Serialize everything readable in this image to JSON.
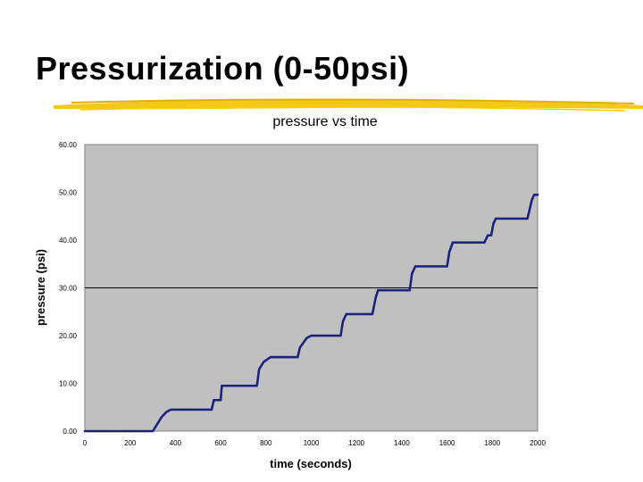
{
  "slide": {
    "title": "Pressurization (0-50psi)"
  },
  "colors": {
    "plot_background": "#c0c0c0",
    "series": "#1a237e",
    "underline": "#f2c200"
  },
  "chart_data": {
    "type": "scatter",
    "title": "pressure vs time",
    "xlabel": "time (seconds)",
    "ylabel": "pressure (psi)",
    "xlim": [
      0,
      2000
    ],
    "ylim": [
      0,
      60
    ],
    "x_ticks": [
      "0",
      "200",
      "400",
      "600",
      "800",
      "1000",
      "1200",
      "1400",
      "1600",
      "1800",
      "2000"
    ],
    "y_ticks": [
      "0.00",
      "10.00",
      "20.00",
      "30.00",
      "40.00",
      "50.00",
      "60.00"
    ],
    "gridlines": [
      30
    ],
    "series": [
      {
        "marker": "dot",
        "color": "#1a237e",
        "points": [
          [
            0,
            0
          ],
          [
            300,
            0
          ],
          [
            320,
            1.5
          ],
          [
            340,
            3
          ],
          [
            360,
            4
          ],
          [
            380,
            4.5
          ],
          [
            560,
            4.5
          ],
          [
            570,
            6.5
          ],
          [
            600,
            6.5
          ],
          [
            605,
            9.5
          ],
          [
            760,
            9.5
          ],
          [
            770,
            13
          ],
          [
            790,
            14.5
          ],
          [
            820,
            15.5
          ],
          [
            940,
            15.5
          ],
          [
            950,
            17.5
          ],
          [
            980,
            19.5
          ],
          [
            1000,
            20
          ],
          [
            1130,
            20
          ],
          [
            1140,
            23
          ],
          [
            1155,
            24.5
          ],
          [
            1270,
            24.5
          ],
          [
            1285,
            28
          ],
          [
            1295,
            29.5
          ],
          [
            1435,
            29.5
          ],
          [
            1445,
            33
          ],
          [
            1460,
            34.5
          ],
          [
            1600,
            34.5
          ],
          [
            1610,
            37.5
          ],
          [
            1625,
            39.5
          ],
          [
            1765,
            39.5
          ],
          [
            1780,
            41
          ],
          [
            1795,
            41
          ],
          [
            1805,
            43.5
          ],
          [
            1815,
            44.5
          ],
          [
            1955,
            44.5
          ],
          [
            1965,
            46.5
          ],
          [
            1975,
            48.5
          ],
          [
            1985,
            49.5
          ],
          [
            2000,
            49.5
          ]
        ]
      }
    ]
  }
}
